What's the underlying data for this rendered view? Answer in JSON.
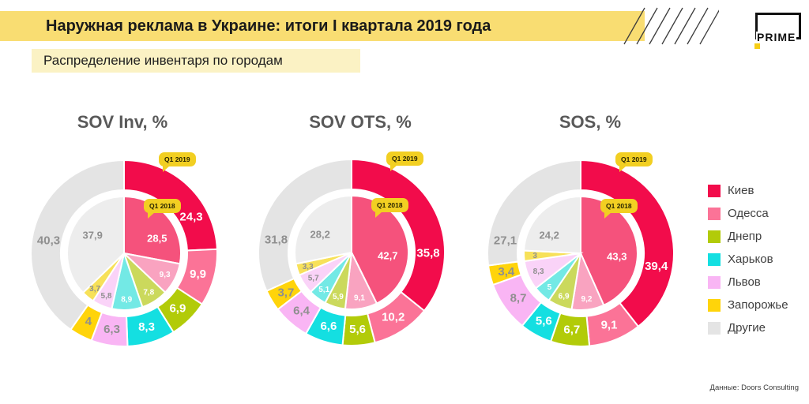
{
  "header": {
    "title": "Наружная реклама в Украине: итоги I квартала 2019 года",
    "subtitle": "Распределение инвентаря по городам",
    "brand": "PRIME"
  },
  "source": "Данные: Doors Consulting",
  "series_labels": {
    "outer": "Q1 2019",
    "inner": "Q1 2018"
  },
  "colors": {
    "header_bar": "#F9DD72",
    "subtitle_bar": "#FBF2C4",
    "bubble": "#F2CF22",
    "logo_square": "#F7CE17",
    "title_gray": "#595959",
    "gray_label": "#8F8F8F",
    "white_label": "#FFFFFF"
  },
  "cities": [
    {
      "label": "Киев",
      "color_2019": "#F20C4B",
      "color_2018": "#F5527C",
      "text_2019": "#FFFFFF",
      "text_2018": "#FFFFFF"
    },
    {
      "label": "Одесса",
      "color_2019": "#FB7397",
      "color_2018": "#F9A3C0",
      "text_2019": "#FFFFFF",
      "text_2018": "#FFFFFF"
    },
    {
      "label": "Днепр",
      "color_2019": "#B2CB09",
      "color_2018": "#CBD95C",
      "text_2019": "#FFFFFF",
      "text_2018": "#FFFFFF"
    },
    {
      "label": "Харьков",
      "color_2019": "#14DFE1",
      "color_2018": "#73E9E5",
      "text_2019": "#FFFFFF",
      "text_2018": "#FFFFFF"
    },
    {
      "label": "Львов",
      "color_2019": "#F9B5F4",
      "color_2018": "#FAD3F8",
      "text_2019": "#8F8F8F",
      "text_2018": "#8F8F8F"
    },
    {
      "label": "Запорожье",
      "color_2019": "#FFD40A",
      "color_2018": "#F7E159",
      "text_2019": "#8F8F8F",
      "text_2018": "#8F8F8F"
    },
    {
      "label": "Другие",
      "color_2019": "#E4E4E4",
      "color_2018": "#EDEDED",
      "text_2019": "#8F8F8F",
      "text_2018": "#8F8F8F"
    }
  ],
  "chart_data": [
    {
      "type": "donut",
      "title": "SOV Inv, %",
      "categories": [
        "Киев",
        "Одесса",
        "Днепр",
        "Харьков",
        "Львов",
        "Запорожье",
        "Другие"
      ],
      "series": [
        {
          "name": "Q1 2019",
          "ring": "outer",
          "values": [
            24.3,
            9.9,
            6.9,
            8.3,
            6.3,
            4,
            40.3
          ]
        },
        {
          "name": "Q1 2018",
          "ring": "inner",
          "values": [
            28.5,
            9.3,
            7.8,
            8.9,
            5.8,
            3.7,
            37.9
          ]
        }
      ]
    },
    {
      "type": "donut",
      "title": "SOV OTS, %",
      "categories": [
        "Киев",
        "Одесса",
        "Днепр",
        "Харьков",
        "Львов",
        "Запорожье",
        "Другие"
      ],
      "series": [
        {
          "name": "Q1 2019",
          "ring": "outer",
          "values": [
            35.8,
            10.2,
            5.6,
            6.6,
            6.4,
            3.7,
            31.8
          ]
        },
        {
          "name": "Q1 2018",
          "ring": "inner",
          "values": [
            42.7,
            9.1,
            5.9,
            5.1,
            5.7,
            3.3,
            28.2
          ]
        }
      ]
    },
    {
      "type": "donut",
      "title": "SOS, %",
      "categories": [
        "Киев",
        "Одесса",
        "Днепр",
        "Харьков",
        "Львов",
        "Запорожье",
        "Другие"
      ],
      "series": [
        {
          "name": "Q1 2019",
          "ring": "outer",
          "values": [
            39.4,
            9.1,
            6.7,
            5.6,
            8.7,
            3.4,
            27.1
          ]
        },
        {
          "name": "Q1 2018",
          "ring": "inner",
          "values": [
            43.3,
            9.2,
            6.9,
            5,
            8.3,
            3,
            24.2
          ]
        }
      ]
    }
  ]
}
